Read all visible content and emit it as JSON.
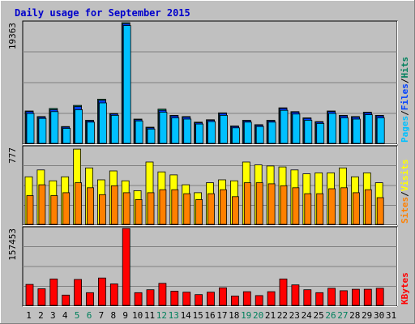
{
  "chart_data": {
    "type": "bar",
    "title": "Daily usage for September 2015",
    "x": [
      "1",
      "2",
      "3",
      "4",
      "5",
      "6",
      "7",
      "8",
      "9",
      "10",
      "11",
      "12",
      "13",
      "14",
      "15",
      "16",
      "17",
      "18",
      "19",
      "20",
      "21",
      "22",
      "23",
      "24",
      "25",
      "26",
      "27",
      "28",
      "29",
      "30",
      "31"
    ],
    "weekend_days": [
      "5",
      "6",
      "12",
      "13",
      "19",
      "20",
      "26",
      "27"
    ],
    "colors": {
      "background": "#c0c0c0",
      "title": "#0000cc",
      "hits": "#00805c",
      "files": "#0040ff",
      "pages": "#00c0ff",
      "visits": "#ffff00",
      "sites": "#ff8000",
      "kbytes": "#ff0000",
      "weekend_tick": "#00805c",
      "weekday_tick": "#000000"
    },
    "panels": [
      {
        "id": "hits-files-pages",
        "ymax_label": "19363",
        "ylim": [
          0,
          19363
        ],
        "side_label": [
          "Pages",
          "/",
          "Files",
          "/",
          "Hits"
        ],
        "series": [
          {
            "name": "Hits",
            "values": [
              5200,
              4300,
              5600,
              2700,
              6100,
              3700,
              7100,
              4800,
              19363,
              3900,
              2600,
              5500,
              4500,
              4300,
              3400,
              3800,
              4900,
              2800,
              3700,
              3000,
              3700,
              5700,
              5100,
              4100,
              3500,
              5200,
              4500,
              4300,
              5000,
              4500,
              0
            ]
          },
          {
            "name": "Files",
            "values": [
              5100,
              4200,
              5400,
              2600,
              5900,
              3600,
              6900,
              4700,
              19200,
              3800,
              2500,
              5300,
              4400,
              4200,
              3300,
              3700,
              4800,
              2700,
              3600,
              2900,
              3600,
              5600,
              5000,
              4000,
              3400,
              5100,
              4400,
              4200,
              4900,
              4400,
              0
            ]
          },
          {
            "name": "Pages",
            "values": [
              4800,
              4000,
              5100,
              2400,
              5400,
              3400,
              6500,
              4500,
              18900,
              3600,
              2300,
              5000,
              4100,
              3900,
              3100,
              3500,
              4500,
              2500,
              3400,
              2700,
              3400,
              5300,
              4700,
              3700,
              3200,
              4800,
              4100,
              3900,
              4600,
              4100,
              0
            ]
          }
        ]
      },
      {
        "id": "visits-sites",
        "ymax_label": "777",
        "ylim": [
          0,
          777
        ],
        "side_label": [
          "Sites",
          "/",
          "Visits"
        ],
        "series": [
          {
            "name": "Visits",
            "values": [
              480,
              550,
              440,
              480,
              760,
              570,
              450,
              540,
              440,
              340,
              630,
              530,
              500,
              400,
              320,
              420,
              450,
              440,
              630,
              600,
              590,
              580,
              550,
              510,
              520,
              520,
              570,
              480,
              520,
              420,
              0
            ]
          },
          {
            "name": "Sites",
            "values": [
              290,
              400,
              290,
              320,
              420,
              370,
              300,
              390,
              320,
              250,
              320,
              350,
              350,
              310,
              250,
              310,
              350,
              280,
              420,
              420,
              410,
              390,
              370,
              310,
              310,
              360,
              370,
              320,
              350,
              270,
              0
            ]
          }
        ]
      },
      {
        "id": "kbytes",
        "ymax_label": "157453",
        "ylim": [
          0,
          157453
        ],
        "side_label": [
          "KBytes"
        ],
        "series": [
          {
            "name": "KBytes",
            "values": [
              43000,
              34000,
              54000,
              21000,
              53000,
              26000,
              56000,
              44000,
              157453,
              26000,
              32000,
              45000,
              29000,
              27000,
              22000,
              27000,
              36000,
              19000,
              28000,
              20000,
              28000,
              54000,
              42000,
              32000,
              26000,
              35000,
              30000,
              33000,
              33000,
              35000,
              0
            ]
          }
        ]
      }
    ]
  }
}
